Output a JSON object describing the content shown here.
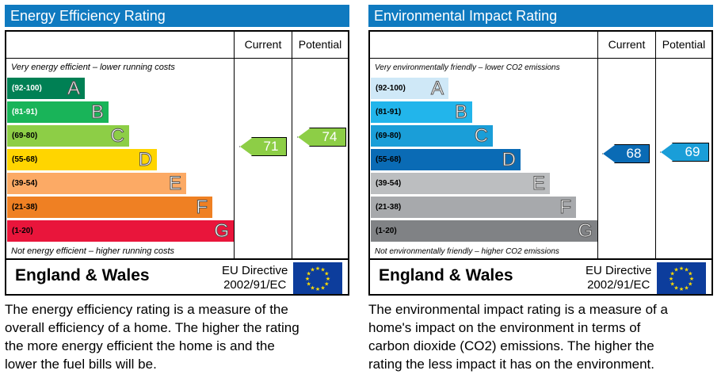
{
  "chart_data": [
    {
      "type": "bar",
      "title": "Energy Efficiency Rating",
      "column_headers": [
        "Current",
        "Potential"
      ],
      "scale_top_note": "Very energy efficient – lower running costs",
      "scale_bottom_note": "Not energy efficient – higher running costs",
      "bands": [
        {
          "range": "(92-100)",
          "letter": "A",
          "color": "#008054"
        },
        {
          "range": "(81-91)",
          "letter": "B",
          "color": "#19b459"
        },
        {
          "range": "(69-80)",
          "letter": "C",
          "color": "#8dce46"
        },
        {
          "range": "(55-68)",
          "letter": "D",
          "color": "#ffd500"
        },
        {
          "range": "(39-54)",
          "letter": "E",
          "color": "#fcaa65"
        },
        {
          "range": "(21-38)",
          "letter": "F",
          "color": "#ef8023"
        },
        {
          "range": "(1-20)",
          "letter": "G",
          "color": "#e9153b"
        }
      ],
      "current": 71,
      "potential": 74,
      "current_color": "#8dce46",
      "potential_color": "#8dce46",
      "region": "England & Wales",
      "directive_line1": "EU Directive",
      "directive_line2": "2002/91/EC",
      "caption": "The energy efficiency rating is a measure of the\noverall efficiency of a home.  The higher the rating\nthe more energy efficient the home is and the\nlower the fuel bills will be."
    },
    {
      "type": "bar",
      "title": "Environmental Impact Rating",
      "column_headers": [
        "Current",
        "Potential"
      ],
      "scale_top_note": "Very environmentally friendly – lower CO2 emissions",
      "scale_bottom_note": "Not environmentally friendly – higher CO2 emissions",
      "bands": [
        {
          "range": "(92-100)",
          "letter": "A",
          "color": "#cfe8f7"
        },
        {
          "range": "(81-91)",
          "letter": "B",
          "color": "#22b5eb"
        },
        {
          "range": "(69-80)",
          "letter": "C",
          "color": "#1a9ed8"
        },
        {
          "range": "(55-68)",
          "letter": "D",
          "color": "#0a6bb5"
        },
        {
          "range": "(39-54)",
          "letter": "E",
          "color": "#bcbec0"
        },
        {
          "range": "(21-38)",
          "letter": "F",
          "color": "#a7a9ac"
        },
        {
          "range": "(1-20)",
          "letter": "G",
          "color": "#808285"
        }
      ],
      "current": 68,
      "potential": 69,
      "current_color": "#0a6bb5",
      "potential_color": "#1a9ed8",
      "region": "England & Wales",
      "directive_line1": "EU Directive",
      "directive_line2": "2002/91/EC",
      "caption": "The environmental impact rating is a measure of a\nhome's impact on the environment in terms of\ncarbon dioxide (CO2) emissions.  The higher the\nrating the less impact it has on the environment."
    }
  ]
}
